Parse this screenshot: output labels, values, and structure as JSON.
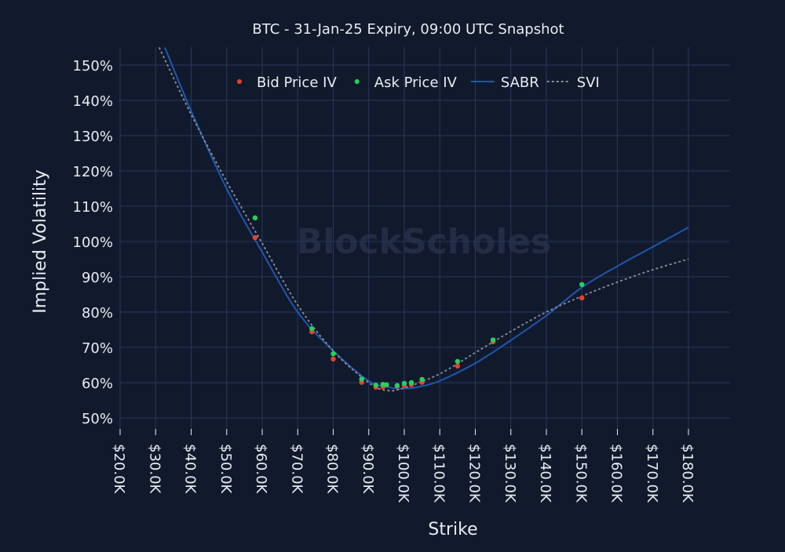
{
  "chart_data": {
    "type": "scatter+line",
    "title": "BTC - 31-Jan-25 Expiry, 09:00 UTC Snapshot",
    "xlabel": "Strike",
    "ylabel": "Implied Volatility",
    "xlim": [
      20,
      180
    ],
    "ylim": [
      45,
      155
    ],
    "x_ticks": [
      20,
      30,
      40,
      50,
      60,
      70,
      80,
      90,
      100,
      110,
      120,
      130,
      140,
      150,
      160,
      170,
      180
    ],
    "x_tick_labels": [
      "$20.0K",
      "$30.0K",
      "$40.0K",
      "$50.0K",
      "$60.0K",
      "$70.0K",
      "$80.0K",
      "$90.0K",
      "$100.0K",
      "$110.0K",
      "$120.0K",
      "$130.0K",
      "$140.0K",
      "$150.0K",
      "$160.0K",
      "$170.0K",
      "$180.0K"
    ],
    "y_ticks": [
      50,
      60,
      70,
      80,
      90,
      100,
      110,
      120,
      130,
      140,
      150
    ],
    "y_tick_labels": [
      "50%",
      "60%",
      "70%",
      "80%",
      "90%",
      "100%",
      "110%",
      "120%",
      "130%",
      "140%",
      "150%"
    ],
    "grid": true,
    "legend_position": "top-center",
    "watermark": "BlockScholes",
    "colors": {
      "background": "#111a2c",
      "grid": "#26365f",
      "bid": "#e8412c",
      "ask": "#22d45a",
      "sabr": "#1f56b0",
      "svi": "#8a8f99"
    },
    "series": [
      {
        "name": "Bid Price IV",
        "kind": "markers",
        "color": "#e8412c",
        "x": [
          58,
          74,
          80,
          88,
          92,
          94,
          98,
          100,
          102,
          105,
          115,
          125,
          150
        ],
        "y": [
          101.1,
          74.4,
          66.7,
          60.1,
          58.7,
          58.8,
          59.0,
          59.2,
          59.4,
          60.1,
          64.7,
          71.6,
          84.0
        ]
      },
      {
        "name": "Ask Price IV",
        "kind": "markers",
        "color": "#22d45a",
        "x": [
          58,
          74,
          80,
          88,
          92,
          94,
          95,
          98,
          100,
          102,
          105,
          115,
          125,
          150
        ],
        "y": [
          106.7,
          75.3,
          68.2,
          61.0,
          59.3,
          59.5,
          59.4,
          59.2,
          59.8,
          60.0,
          60.9,
          66.0,
          72.1,
          87.8
        ]
      },
      {
        "name": "SABR",
        "kind": "line",
        "color": "#1f56b0",
        "x": [
          32.6,
          40,
          50,
          60,
          70,
          80,
          90,
          95,
          100,
          105,
          110,
          120,
          130,
          140,
          150,
          160,
          170,
          180
        ],
        "y": [
          155,
          137,
          115,
          97,
          80,
          69,
          60.5,
          58.8,
          58.3,
          59,
          60.5,
          65.5,
          72,
          79,
          87,
          93,
          98.5,
          104
        ]
      },
      {
        "name": "SVI",
        "kind": "dotted-line",
        "color": "#8a8f99",
        "x": [
          31,
          40,
          50,
          60,
          70,
          80,
          90,
          95,
          100,
          110,
          120,
          130,
          140,
          150,
          160,
          170,
          180
        ],
        "y": [
          155,
          136,
          117,
          99.5,
          82,
          69,
          60,
          57.8,
          58.5,
          62.5,
          68.5,
          74.5,
          80,
          84.5,
          88.5,
          92,
          95
        ]
      }
    ]
  }
}
